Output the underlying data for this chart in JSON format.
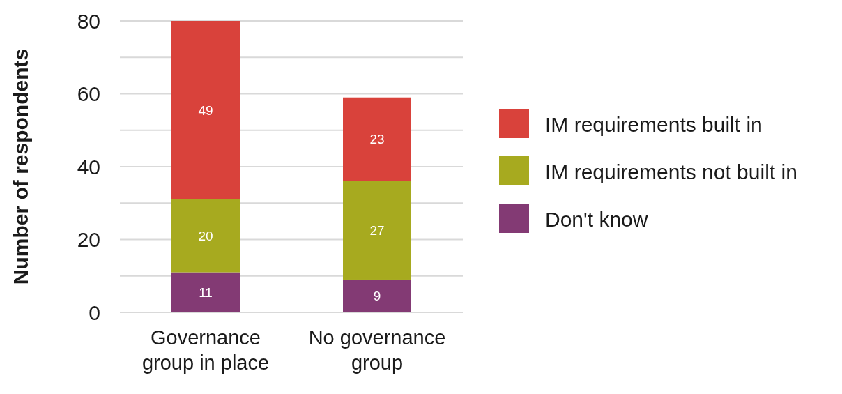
{
  "chart_data": {
    "type": "bar",
    "stacked": true,
    "ylabel": "Number of respondents",
    "categories": [
      "Governance group in place",
      "No governance group"
    ],
    "series": [
      {
        "name": "Don't know",
        "color": "#833a74",
        "values": [
          11,
          9
        ]
      },
      {
        "name": "IM requirements not built in",
        "color": "#a7aa1f",
        "values": [
          20,
          27
        ]
      },
      {
        "name": "IM requirements built in",
        "color": "#d9423b",
        "values": [
          49,
          23
        ]
      }
    ],
    "ylim": [
      0,
      80
    ],
    "yticks": [
      0,
      {
        "value": 10,
        "label": null
      },
      20,
      {
        "value": 30,
        "label": null
      },
      40,
      {
        "value": 50,
        "label": null
      },
      60,
      {
        "value": 70,
        "label": null
      },
      80
    ],
    "grid": true,
    "legend": "right",
    "data_labels": true
  }
}
